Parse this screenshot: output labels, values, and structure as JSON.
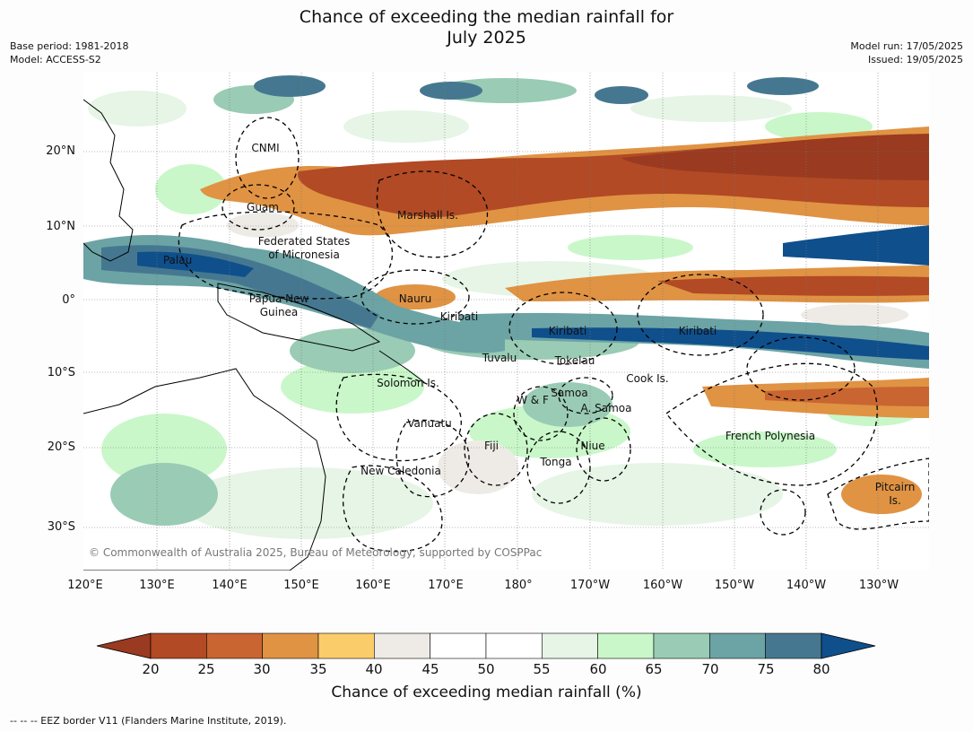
{
  "title_line1": "Chance of exceeding the median rainfall for",
  "title_line2": "July 2025",
  "meta_left": [
    "Base period: 1981-2018",
    "Model: ACCESS-S2"
  ],
  "meta_right": [
    "Model run: 17/05/2025",
    "Issued: 19/05/2025"
  ],
  "lat_labels": [
    "20°N",
    "10°N",
    "0°",
    "10°S",
    "20°S",
    "30°S"
  ],
  "lon_labels": [
    "120°E",
    "130°E",
    "140°E",
    "150°E",
    "160°E",
    "170°E",
    "180°",
    "170°W",
    "160°W",
    "150°W",
    "140°W",
    "130°W"
  ],
  "places": [
    {
      "name": "CNMI"
    },
    {
      "name": "Guam"
    },
    {
      "name": "Marshall Is."
    },
    {
      "name": "Federated States"
    },
    {
      "name": "of Micronesia"
    },
    {
      "name": "Palau"
    },
    {
      "name": "Nauru"
    },
    {
      "name": "Papua New"
    },
    {
      "name": "Guinea"
    },
    {
      "name": "Kiribati"
    },
    {
      "name": "Kiribati"
    },
    {
      "name": "Kiribati"
    },
    {
      "name": "Tuvalu"
    },
    {
      "name": "Tokelau"
    },
    {
      "name": "Cook Is."
    },
    {
      "name": "Solomon Is."
    },
    {
      "name": "Samoa"
    },
    {
      "name": "W & F"
    },
    {
      "name": "A. Samoa"
    },
    {
      "name": "Vanuatu"
    },
    {
      "name": "Fiji"
    },
    {
      "name": "Niue"
    },
    {
      "name": "French Polynesia"
    },
    {
      "name": "Tonga"
    },
    {
      "name": "New Caledonia"
    },
    {
      "name": "Pitcairn"
    },
    {
      "name": "Is."
    }
  ],
  "copyright": "© Commonwealth of Australia 2025, Bureau of Meteorology, supported by COSPPac",
  "colorbar": {
    "ticks": [
      "20",
      "25",
      "30",
      "35",
      "40",
      "45",
      "50",
      "55",
      "60",
      "65",
      "70",
      "75",
      "80"
    ],
    "colors": [
      "#9a3a20",
      "#b14a25",
      "#c96531",
      "#e09343",
      "#fbcc6a",
      "#eeebe6",
      "#ffffff",
      "#ffffff",
      "#e6f5e6",
      "#c9f7c9",
      "#9acbb5",
      "#6ca3a5",
      "#457890",
      "#0f4f8c"
    ],
    "label": "Chance of exceeding median rainfall (%)"
  },
  "footer": "--  --  -- EEZ border V11 (Flanders Marine Institute, 2019)."
}
